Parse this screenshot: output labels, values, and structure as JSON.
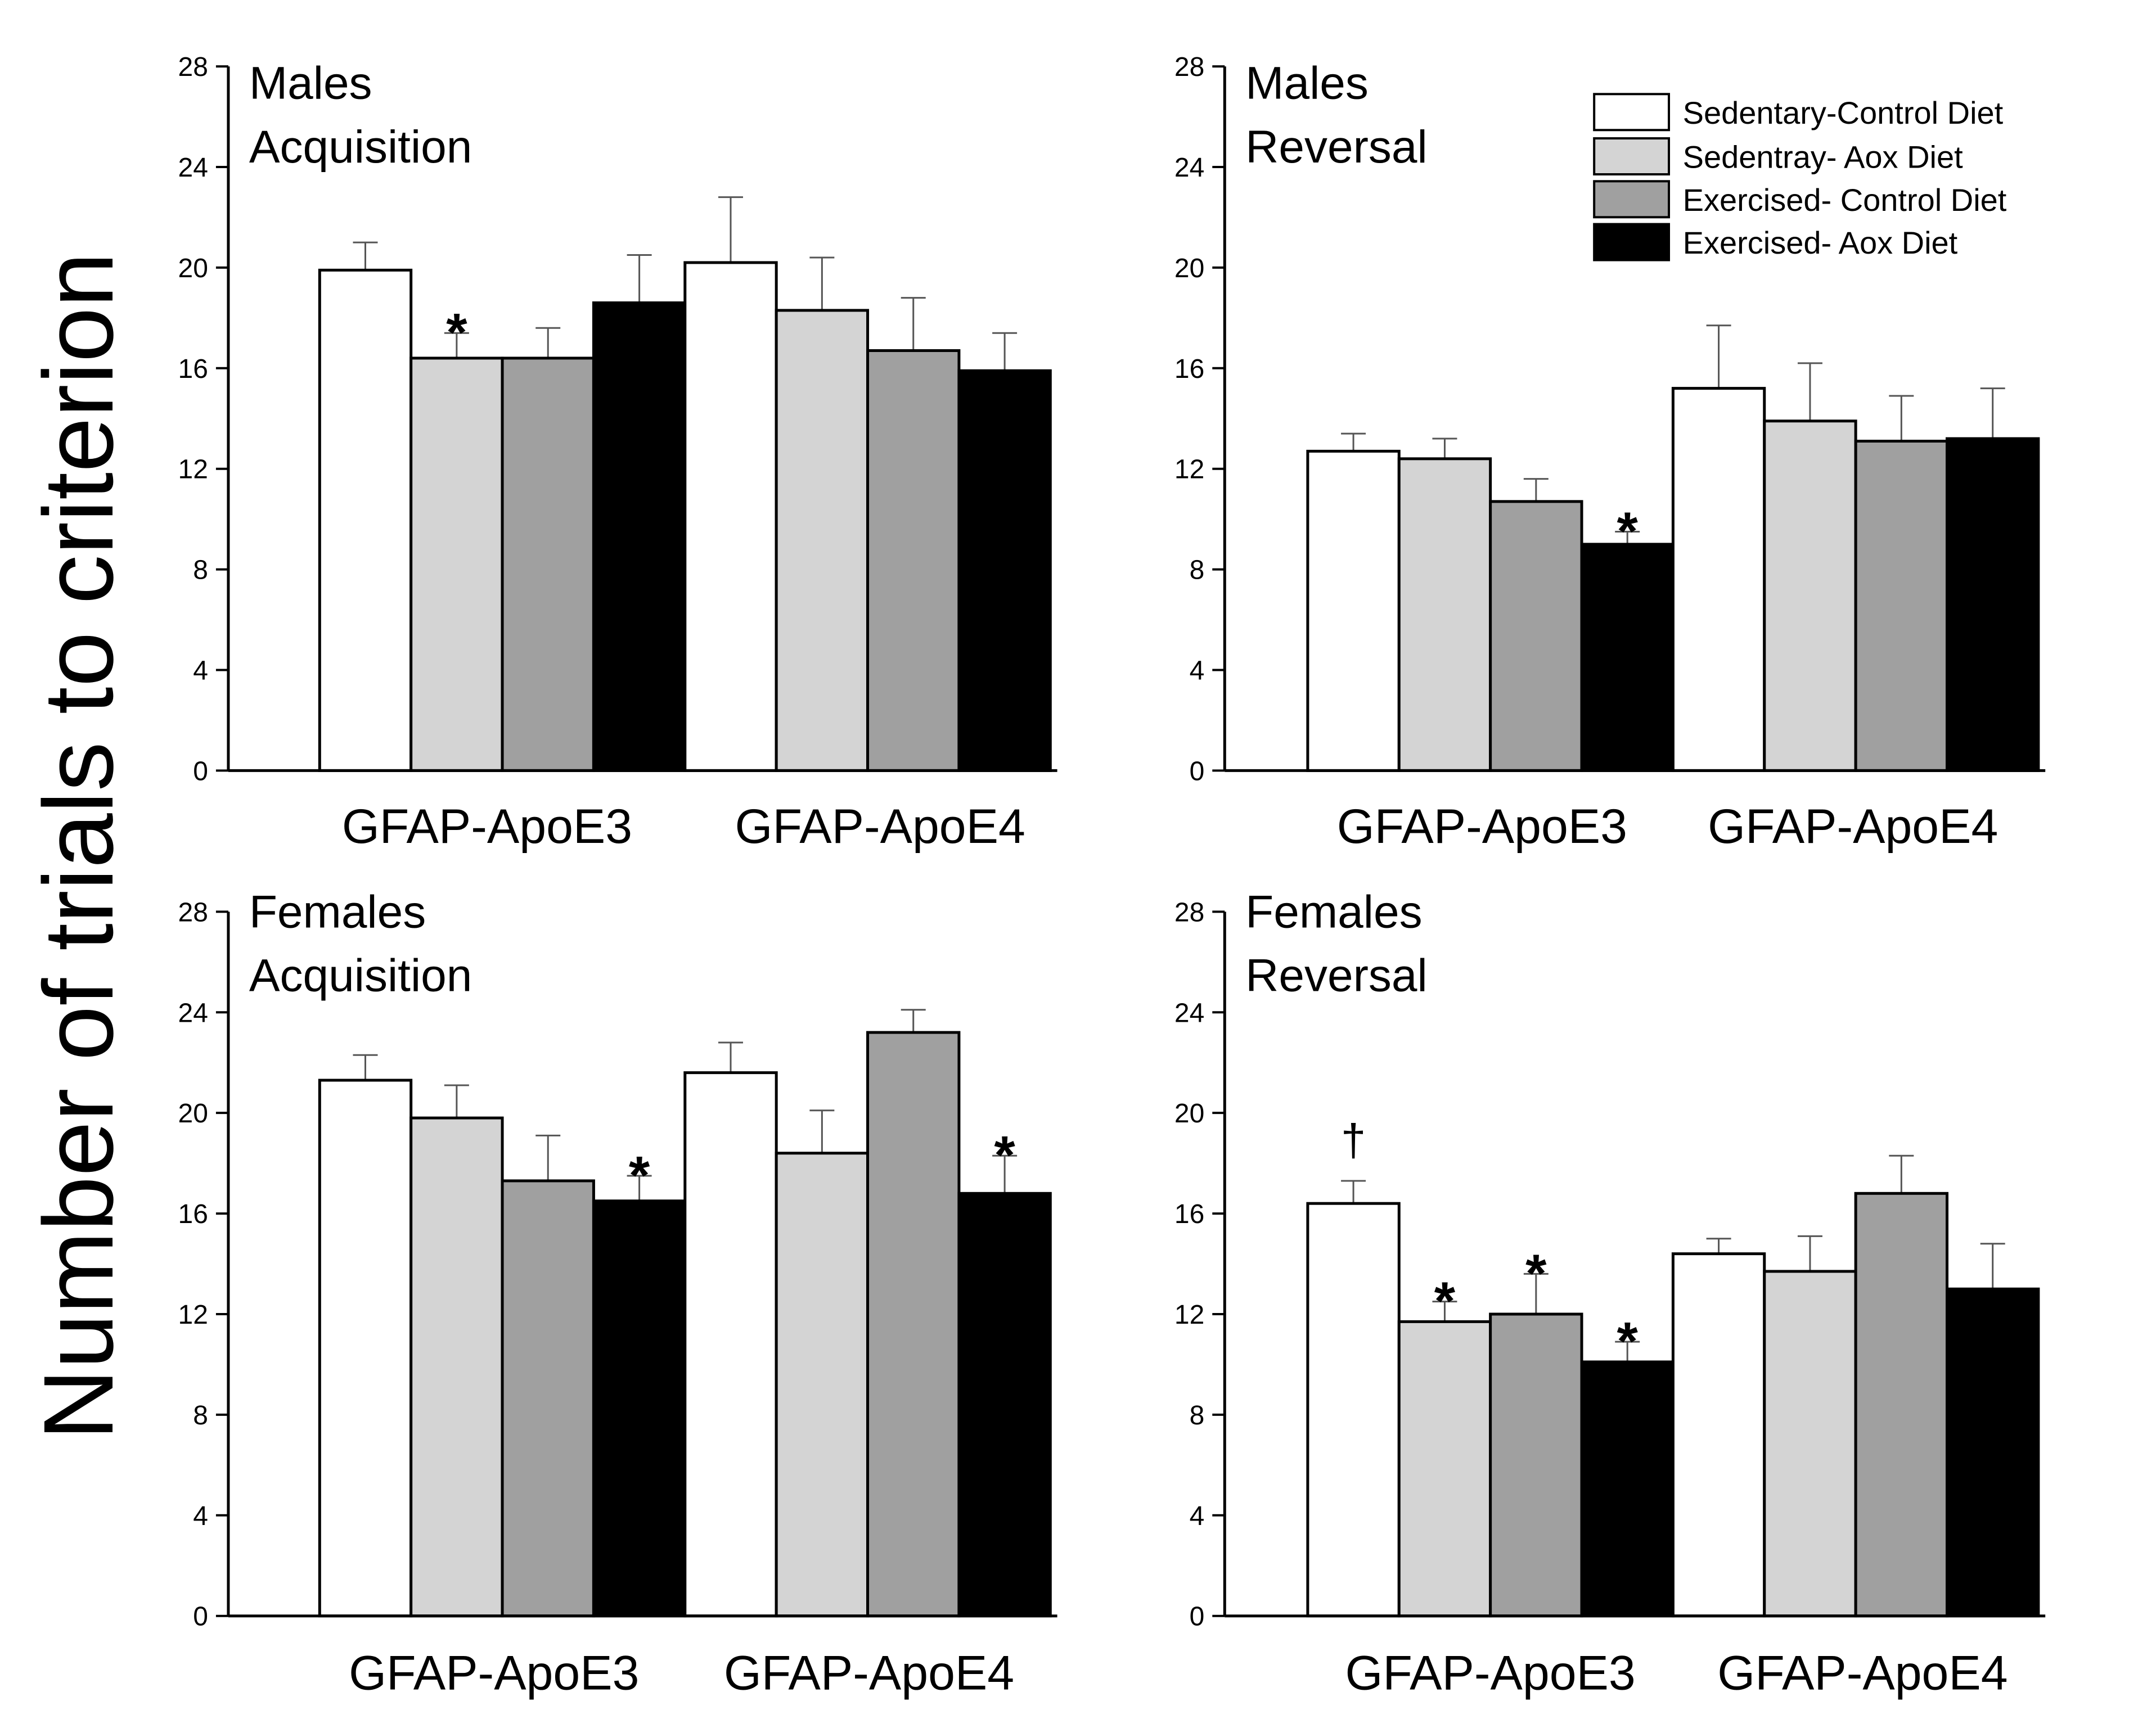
{
  "chart_data": {
    "type": "bar",
    "ylabel": "Number of trials to criterion",
    "ylim": [
      0,
      28
    ],
    "yticks": [
      0,
      4,
      8,
      12,
      16,
      20,
      24,
      28
    ],
    "categories": [
      "GFAP-ApoE3",
      "GFAP-ApoE4"
    ],
    "series": [
      {
        "name": "Sedentary-Control Diet",
        "color": "#ffffff"
      },
      {
        "name": "Sedentray- Aox Diet",
        "color": "#d4d4d4"
      },
      {
        "name": "Exercised- Control Diet",
        "color": "#a0a0a0"
      },
      {
        "name": "Exercised- Aox Diet",
        "color": "#000000"
      }
    ],
    "panels": [
      {
        "title": [
          "Males",
          "Acquisition"
        ],
        "values": [
          [
            19.9,
            16.4,
            16.4,
            18.6
          ],
          [
            20.2,
            18.3,
            16.7,
            15.9
          ]
        ],
        "errors": [
          [
            1.1,
            1.0,
            1.2,
            1.9
          ],
          [
            2.6,
            2.1,
            2.1,
            1.5
          ]
        ],
        "markers": [
          [
            "",
            "*",
            "",
            ""
          ],
          [
            "",
            "",
            "",
            ""
          ]
        ]
      },
      {
        "title": [
          "Males",
          "Reversal"
        ],
        "values": [
          [
            12.7,
            12.4,
            10.7,
            9.0
          ],
          [
            15.2,
            13.9,
            13.1,
            13.2
          ]
        ],
        "errors": [
          [
            0.7,
            0.8,
            0.9,
            0.5
          ],
          [
            2.5,
            2.3,
            1.8,
            2.0
          ]
        ],
        "markers": [
          [
            "",
            "",
            "",
            "*"
          ],
          [
            "",
            "",
            "",
            ""
          ]
        ]
      },
      {
        "title": [
          "Females",
          "Acquisition"
        ],
        "values": [
          [
            21.3,
            19.8,
            17.3,
            16.5
          ],
          [
            21.6,
            18.4,
            23.2,
            16.8
          ]
        ],
        "errors": [
          [
            1.0,
            1.3,
            1.8,
            1.0
          ],
          [
            1.2,
            1.7,
            0.9,
            1.5
          ]
        ],
        "markers": [
          [
            "",
            "",
            "",
            "*"
          ],
          [
            "",
            "",
            "",
            "*"
          ]
        ]
      },
      {
        "title": [
          "Females",
          "Reversal"
        ],
        "values": [
          [
            16.4,
            11.7,
            12.0,
            10.1
          ],
          [
            14.4,
            13.7,
            16.8,
            13.0
          ]
        ],
        "errors": [
          [
            0.9,
            0.8,
            1.6,
            0.8
          ],
          [
            0.6,
            1.4,
            1.5,
            1.8
          ]
        ],
        "markers": [
          [
            "†",
            "*",
            "*",
            "*"
          ],
          [
            "",
            "",
            "",
            ""
          ]
        ]
      }
    ]
  }
}
